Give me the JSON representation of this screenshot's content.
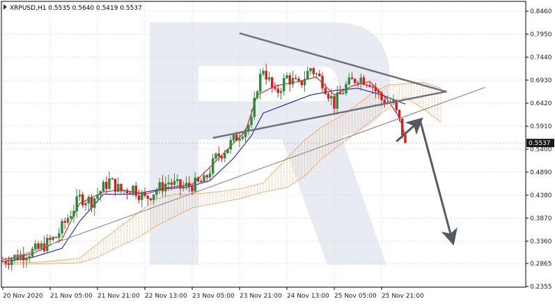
{
  "chart_data": {
    "type": "candlestick",
    "symbol_title": "XRPUSD,H1  0.5535 0.5640 0.5419 0.5537",
    "current_price_label": "0.5537",
    "current_price": 0.5537,
    "y_range": [
      0.2355,
      0.846
    ],
    "y_ticks": [
      "0.8460",
      "0.7950",
      "0.7440",
      "0.6930",
      "0.6420",
      "0.5910",
      "0.5400",
      "0.4890",
      "0.4380",
      "0.3870",
      "0.3360",
      "0.2865",
      "0.2355"
    ],
    "y_tick_values": [
      0.846,
      0.795,
      0.744,
      0.693,
      0.642,
      0.591,
      0.54,
      0.489,
      0.438,
      0.387,
      0.336,
      0.2865,
      0.2355
    ],
    "x_ticks": [
      "20 Nov 2020",
      "21 Nov 05:00",
      "21 Nov 21:00",
      "22 Nov 13:00",
      "23 Nov 05:00",
      "23 Nov 21:00",
      "24 Nov 13:00",
      "25 Nov 05:00",
      "25 Nov 21:00"
    ],
    "x_range": [
      0,
      148
    ],
    "x_tick_positions": [
      0,
      16,
      32,
      48,
      64,
      80,
      96,
      112,
      128
    ],
    "grid": true,
    "colors": {
      "background": "#ffffff",
      "grid": "#d8d8d8",
      "bull": "#2e8b3d",
      "bear": "#d62020",
      "tenkan": "#e01515",
      "kijun": "#1a1acc",
      "cloud": "#f0a050",
      "trendline_thick": "#6e7378",
      "trendline_thin": "#8e8e8e",
      "arrow": "#555a60",
      "price_tag_bg": "#1a1a1a",
      "watermark": "#d5dce8"
    },
    "candle_keyframes": [
      [
        0,
        0.292
      ],
      [
        6,
        0.305
      ],
      [
        12,
        0.318
      ],
      [
        18,
        0.345
      ],
      [
        24,
        0.41
      ],
      [
        26,
        0.432
      ],
      [
        30,
        0.425
      ],
      [
        34,
        0.455
      ],
      [
        36,
        0.47
      ],
      [
        40,
        0.447
      ],
      [
        44,
        0.455
      ],
      [
        48,
        0.43
      ],
      [
        52,
        0.45
      ],
      [
        56,
        0.467
      ],
      [
        60,
        0.455
      ],
      [
        64,
        0.46
      ],
      [
        68,
        0.468
      ],
      [
        72,
        0.52
      ],
      [
        76,
        0.545
      ],
      [
        80,
        0.575
      ],
      [
        84,
        0.6
      ],
      [
        86,
        0.68
      ],
      [
        88,
        0.72
      ],
      [
        92,
        0.66
      ],
      [
        96,
        0.7
      ],
      [
        100,
        0.68
      ],
      [
        104,
        0.72
      ],
      [
        108,
        0.69
      ],
      [
        112,
        0.64
      ],
      [
        116,
        0.68
      ],
      [
        120,
        0.7
      ],
      [
        124,
        0.69
      ],
      [
        128,
        0.65
      ],
      [
        132,
        0.64
      ],
      [
        134,
        0.6
      ],
      [
        136,
        0.556
      ]
    ],
    "tenkan_line": [
      [
        0,
        0.295
      ],
      [
        10,
        0.308
      ],
      [
        20,
        0.34
      ],
      [
        26,
        0.42
      ],
      [
        34,
        0.445
      ],
      [
        40,
        0.45
      ],
      [
        48,
        0.44
      ],
      [
        56,
        0.455
      ],
      [
        64,
        0.462
      ],
      [
        70,
        0.5
      ],
      [
        76,
        0.54
      ],
      [
        82,
        0.58
      ],
      [
        86,
        0.66
      ],
      [
        92,
        0.68
      ],
      [
        100,
        0.69
      ],
      [
        106,
        0.7
      ],
      [
        112,
        0.66
      ],
      [
        118,
        0.68
      ],
      [
        124,
        0.69
      ],
      [
        130,
        0.65
      ],
      [
        134,
        0.61
      ],
      [
        136,
        0.57
      ]
    ],
    "kijun_line": [
      [
        0,
        0.29
      ],
      [
        10,
        0.3
      ],
      [
        20,
        0.32
      ],
      [
        26,
        0.38
      ],
      [
        34,
        0.44
      ],
      [
        44,
        0.44
      ],
      [
        54,
        0.452
      ],
      [
        62,
        0.455
      ],
      [
        70,
        0.47
      ],
      [
        78,
        0.52
      ],
      [
        84,
        0.57
      ],
      [
        88,
        0.62
      ],
      [
        96,
        0.64
      ],
      [
        104,
        0.66
      ],
      [
        112,
        0.67
      ],
      [
        120,
        0.675
      ],
      [
        128,
        0.66
      ],
      [
        134,
        0.645
      ],
      [
        136,
        0.64
      ]
    ],
    "cloud_upper": [
      [
        0,
        0.287
      ],
      [
        14,
        0.29
      ],
      [
        26,
        0.298
      ],
      [
        32,
        0.33
      ],
      [
        38,
        0.36
      ],
      [
        46,
        0.4
      ],
      [
        52,
        0.43
      ],
      [
        58,
        0.44
      ],
      [
        64,
        0.44
      ],
      [
        72,
        0.445
      ],
      [
        80,
        0.452
      ],
      [
        88,
        0.465
      ],
      [
        96,
        0.52
      ],
      [
        102,
        0.56
      ],
      [
        108,
        0.59
      ],
      [
        116,
        0.62
      ],
      [
        124,
        0.66
      ],
      [
        130,
        0.682
      ],
      [
        136,
        0.685
      ],
      [
        142,
        0.688
      ],
      [
        148,
        0.675
      ]
    ],
    "cloud_lower": [
      [
        0,
        0.284
      ],
      [
        14,
        0.286
      ],
      [
        26,
        0.288
      ],
      [
        32,
        0.3
      ],
      [
        38,
        0.32
      ],
      [
        46,
        0.345
      ],
      [
        52,
        0.37
      ],
      [
        58,
        0.39
      ],
      [
        64,
        0.41
      ],
      [
        72,
        0.42
      ],
      [
        80,
        0.43
      ],
      [
        88,
        0.445
      ],
      [
        96,
        0.455
      ],
      [
        102,
        0.48
      ],
      [
        108,
        0.52
      ],
      [
        116,
        0.56
      ],
      [
        124,
        0.6
      ],
      [
        130,
        0.63
      ],
      [
        136,
        0.655
      ],
      [
        142,
        0.63
      ],
      [
        148,
        0.6
      ]
    ],
    "trendlines": [
      {
        "style": "thick",
        "from": [
          80,
          0.797
        ],
        "to": [
          150,
          0.667
        ]
      },
      {
        "style": "thick",
        "from": [
          71,
          0.565
        ],
        "to": [
          150,
          0.668
        ]
      },
      {
        "style": "thin",
        "from": [
          0,
          0.29
        ],
        "to": [
          163,
          0.677
        ]
      }
    ],
    "arrows": [
      {
        "from": [
          133,
          0.557
        ],
        "to": [
          141,
          0.604
        ]
      },
      {
        "from": [
          141,
          0.604
        ],
        "to": [
          152,
          0.335
        ]
      }
    ]
  }
}
